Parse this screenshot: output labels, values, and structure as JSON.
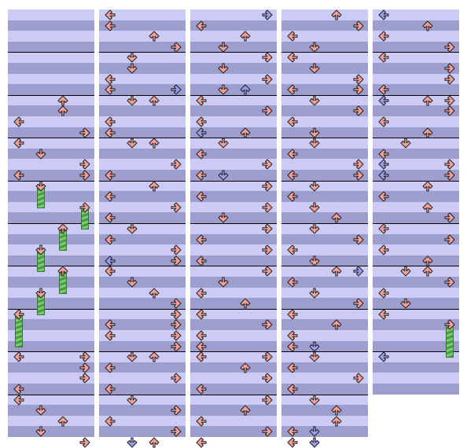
{
  "screen": {
    "type": "dance-step-chart",
    "lanes": [
      "left",
      "down",
      "up",
      "right"
    ],
    "colors": {
      "row_light": "#cbcbf5",
      "row_dark": "#9d9dce",
      "measure_line": "#000000",
      "note_red": "#f6a09a",
      "note_blue": "#9a9cf0",
      "note_outline": "#222222",
      "hold_body": "#60b060",
      "hold_head": "#e8a878"
    },
    "notes_per_measure": 8,
    "icons": {
      "left": "arrow-left-icon",
      "down": "arrow-down-icon",
      "up": "arrow-up-icon",
      "right": "arrow-right-icon"
    }
  },
  "columns": [
    {
      "measures": 10,
      "notes": [
        {
          "row": 8,
          "lane": "up",
          "color": "red"
        },
        {
          "row": 9,
          "lane": "up",
          "color": "red"
        },
        {
          "row": 10,
          "lane": "left",
          "color": "red"
        },
        {
          "row": 11,
          "lane": "right",
          "color": "red"
        },
        {
          "row": 12,
          "lane": "left",
          "color": "red"
        },
        {
          "row": 13,
          "lane": "down",
          "color": "red"
        },
        {
          "row": 14,
          "lane": "right",
          "color": "red"
        },
        {
          "row": 15,
          "lane": "right",
          "color": "red"
        },
        {
          "row": 15,
          "lane": "left",
          "color": "red"
        },
        {
          "row": 16,
          "lane": "down",
          "color": "red",
          "hold": 2
        },
        {
          "row": 18,
          "lane": "right",
          "color": "red",
          "hold": 2
        },
        {
          "row": 20,
          "lane": "up",
          "color": "red",
          "hold": 2
        },
        {
          "row": 22,
          "lane": "down",
          "color": "red",
          "hold": 2
        },
        {
          "row": 24,
          "lane": "up",
          "color": "red",
          "hold": 2
        },
        {
          "row": 26,
          "lane": "down",
          "color": "red",
          "hold": 2
        },
        {
          "row": 28,
          "lane": "left",
          "color": "red",
          "hold": 3
        },
        {
          "row": 32,
          "lane": "left",
          "color": "red"
        },
        {
          "row": 32,
          "lane": "right",
          "color": "red"
        },
        {
          "row": 33,
          "lane": "right",
          "color": "red"
        },
        {
          "row": 34,
          "lane": "right",
          "color": "red"
        },
        {
          "row": 35,
          "lane": "left",
          "color": "red"
        },
        {
          "row": 36,
          "lane": "left",
          "color": "red"
        },
        {
          "row": 37,
          "lane": "down",
          "color": "red"
        },
        {
          "row": 38,
          "lane": "up",
          "color": "red"
        },
        {
          "row": 39,
          "lane": "down",
          "color": "red"
        },
        {
          "row": 40,
          "lane": "right",
          "color": "red"
        }
      ]
    },
    {
      "measures": 10,
      "notes": [
        {
          "row": 0,
          "lane": "left",
          "color": "red"
        },
        {
          "row": 1,
          "lane": "left",
          "color": "red"
        },
        {
          "row": 2,
          "lane": "up",
          "color": "red"
        },
        {
          "row": 3,
          "lane": "right",
          "color": "red"
        },
        {
          "row": 4,
          "lane": "down",
          "color": "red"
        },
        {
          "row": 5,
          "lane": "down",
          "color": "red"
        },
        {
          "row": 6,
          "lane": "left",
          "color": "red"
        },
        {
          "row": 7,
          "lane": "right",
          "color": "blue"
        },
        {
          "row": 7,
          "lane": "left",
          "color": "red"
        },
        {
          "row": 8,
          "lane": "down",
          "color": "red"
        },
        {
          "row": 8,
          "lane": "up",
          "color": "red"
        },
        {
          "row": 10,
          "lane": "left",
          "color": "red"
        },
        {
          "row": 11,
          "lane": "left",
          "color": "red"
        },
        {
          "row": 12,
          "lane": "down",
          "color": "red"
        },
        {
          "row": 12,
          "lane": "up",
          "color": "red"
        },
        {
          "row": 14,
          "lane": "right",
          "color": "red"
        },
        {
          "row": 15,
          "lane": "left",
          "color": "red"
        },
        {
          "row": 16,
          "lane": "up",
          "color": "red"
        },
        {
          "row": 17,
          "lane": "left",
          "color": "red"
        },
        {
          "row": 18,
          "lane": "right",
          "color": "red"
        },
        {
          "row": 19,
          "lane": "left",
          "color": "red"
        },
        {
          "row": 20,
          "lane": "down",
          "color": "red"
        },
        {
          "row": 21,
          "lane": "left",
          "color": "red"
        },
        {
          "row": 22,
          "lane": "right",
          "color": "red"
        },
        {
          "row": 23,
          "lane": "left",
          "color": "blue"
        },
        {
          "row": 23,
          "lane": "right",
          "color": "red"
        },
        {
          "row": 24,
          "lane": "left",
          "color": "red"
        },
        {
          "row": 25,
          "lane": "down",
          "color": "red"
        },
        {
          "row": 26,
          "lane": "up",
          "color": "red"
        },
        {
          "row": 27,
          "lane": "right",
          "color": "red"
        },
        {
          "row": 28,
          "lane": "right",
          "color": "red"
        },
        {
          "row": 29,
          "lane": "left",
          "color": "red"
        },
        {
          "row": 29,
          "lane": "right",
          "color": "red"
        },
        {
          "row": 30,
          "lane": "left",
          "color": "red"
        },
        {
          "row": 30,
          "lane": "right",
          "color": "red"
        },
        {
          "row": 31,
          "lane": "right",
          "color": "red"
        },
        {
          "row": 32,
          "lane": "down",
          "color": "red"
        },
        {
          "row": 32,
          "lane": "up",
          "color": "red"
        },
        {
          "row": 33,
          "lane": "left",
          "color": "red"
        },
        {
          "row": 34,
          "lane": "right",
          "color": "red"
        },
        {
          "row": 35,
          "lane": "left",
          "color": "red"
        },
        {
          "row": 36,
          "lane": "down",
          "color": "red"
        },
        {
          "row": 37,
          "lane": "right",
          "color": "red"
        },
        {
          "row": 38,
          "lane": "left",
          "color": "red"
        },
        {
          "row": 39,
          "lane": "right",
          "color": "red"
        },
        {
          "row": 40,
          "lane": "up",
          "color": "red"
        },
        {
          "row": 40,
          "lane": "down",
          "color": "blue"
        }
      ]
    },
    {
      "measures": 10,
      "notes": [
        {
          "row": 0,
          "lane": "right",
          "color": "blue"
        },
        {
          "row": 1,
          "lane": "left",
          "color": "red"
        },
        {
          "row": 2,
          "lane": "up",
          "color": "red"
        },
        {
          "row": 3,
          "lane": "down",
          "color": "red"
        },
        {
          "row": 4,
          "lane": "right",
          "color": "red"
        },
        {
          "row": 5,
          "lane": "down",
          "color": "red"
        },
        {
          "row": 6,
          "lane": "right",
          "color": "red"
        },
        {
          "row": 7,
          "lane": "down",
          "color": "red"
        },
        {
          "row": 7,
          "lane": "up",
          "color": "blue"
        },
        {
          "row": 8,
          "lane": "left",
          "color": "red"
        },
        {
          "row": 9,
          "lane": "right",
          "color": "red"
        },
        {
          "row": 10,
          "lane": "left",
          "color": "red"
        },
        {
          "row": 11,
          "lane": "up",
          "color": "red"
        },
        {
          "row": 11,
          "lane": "left",
          "color": "blue"
        },
        {
          "row": 12,
          "lane": "down",
          "color": "red"
        },
        {
          "row": 13,
          "lane": "left",
          "color": "red"
        },
        {
          "row": 14,
          "lane": "right",
          "color": "red"
        },
        {
          "row": 15,
          "lane": "left",
          "color": "red"
        },
        {
          "row": 15,
          "lane": "down",
          "color": "blue"
        },
        {
          "row": 16,
          "lane": "right",
          "color": "red"
        },
        {
          "row": 17,
          "lane": "left",
          "color": "red"
        },
        {
          "row": 18,
          "lane": "right",
          "color": "red"
        },
        {
          "row": 19,
          "lane": "down",
          "color": "red"
        },
        {
          "row": 20,
          "lane": "right",
          "color": "red"
        },
        {
          "row": 21,
          "lane": "left",
          "color": "red"
        },
        {
          "row": 22,
          "lane": "right",
          "color": "red"
        },
        {
          "row": 23,
          "lane": "left",
          "color": "red"
        },
        {
          "row": 24,
          "lane": "right",
          "color": "red"
        },
        {
          "row": 25,
          "lane": "down",
          "color": "red"
        },
        {
          "row": 26,
          "lane": "left",
          "color": "red"
        },
        {
          "row": 27,
          "lane": "up",
          "color": "red"
        },
        {
          "row": 28,
          "lane": "left",
          "color": "red"
        },
        {
          "row": 29,
          "lane": "right",
          "color": "red"
        },
        {
          "row": 30,
          "lane": "left",
          "color": "red"
        },
        {
          "row": 31,
          "lane": "left",
          "color": "red"
        },
        {
          "row": 32,
          "lane": "left",
          "color": "red"
        },
        {
          "row": 32,
          "lane": "right",
          "color": "red"
        },
        {
          "row": 33,
          "lane": "up",
          "color": "red"
        },
        {
          "row": 34,
          "lane": "right",
          "color": "red"
        },
        {
          "row": 35,
          "lane": "left",
          "color": "red"
        },
        {
          "row": 36,
          "lane": "right",
          "color": "red"
        },
        {
          "row": 37,
          "lane": "up",
          "color": "red"
        },
        {
          "row": 38,
          "lane": "left",
          "color": "red"
        },
        {
          "row": 39,
          "lane": "right",
          "color": "red"
        },
        {
          "row": 40,
          "lane": "left",
          "color": "red"
        }
      ]
    },
    {
      "measures": 10,
      "notes": [
        {
          "row": 0,
          "lane": "up",
          "color": "red"
        },
        {
          "row": 1,
          "lane": "right",
          "color": "red"
        },
        {
          "row": 2,
          "lane": "left",
          "color": "red"
        },
        {
          "row": 3,
          "lane": "down",
          "color": "red"
        },
        {
          "row": 4,
          "lane": "left",
          "color": "red"
        },
        {
          "row": 5,
          "lane": "down",
          "color": "red"
        },
        {
          "row": 6,
          "lane": "right",
          "color": "red"
        },
        {
          "row": 7,
          "lane": "right",
          "color": "red"
        },
        {
          "row": 7,
          "lane": "left",
          "color": "red"
        },
        {
          "row": 8,
          "lane": "down",
          "color": "red"
        },
        {
          "row": 9,
          "lane": "right",
          "color": "red"
        },
        {
          "row": 10,
          "lane": "left",
          "color": "red"
        },
        {
          "row": 11,
          "lane": "down",
          "color": "red"
        },
        {
          "row": 12,
          "lane": "down",
          "color": "red"
        },
        {
          "row": 13,
          "lane": "left",
          "color": "red"
        },
        {
          "row": 14,
          "lane": "right",
          "color": "red"
        },
        {
          "row": 15,
          "lane": "right",
          "color": "red"
        },
        {
          "row": 15,
          "lane": "left",
          "color": "red"
        },
        {
          "row": 16,
          "lane": "down",
          "color": "red"
        },
        {
          "row": 17,
          "lane": "left",
          "color": "red"
        },
        {
          "row": 18,
          "lane": "down",
          "color": "red"
        },
        {
          "row": 19,
          "lane": "up",
          "color": "red"
        },
        {
          "row": 20,
          "lane": "down",
          "color": "red"
        },
        {
          "row": 21,
          "lane": "right",
          "color": "red"
        },
        {
          "row": 22,
          "lane": "left",
          "color": "red"
        },
        {
          "row": 23,
          "lane": "down",
          "color": "red"
        },
        {
          "row": 24,
          "lane": "right",
          "color": "blue"
        },
        {
          "row": 24,
          "lane": "up",
          "color": "red"
        },
        {
          "row": 25,
          "lane": "left",
          "color": "red"
        },
        {
          "row": 26,
          "lane": "down",
          "color": "red"
        },
        {
          "row": 27,
          "lane": "right",
          "color": "red"
        },
        {
          "row": 28,
          "lane": "left",
          "color": "red"
        },
        {
          "row": 29,
          "lane": "up",
          "color": "red"
        },
        {
          "row": 30,
          "lane": "left",
          "color": "red"
        },
        {
          "row": 31,
          "lane": "down",
          "color": "blue"
        },
        {
          "row": 31,
          "lane": "left",
          "color": "red"
        },
        {
          "row": 32,
          "lane": "down",
          "color": "red"
        },
        {
          "row": 33,
          "lane": "left",
          "color": "red"
        },
        {
          "row": 34,
          "lane": "right",
          "color": "red"
        },
        {
          "row": 35,
          "lane": "left",
          "color": "red"
        },
        {
          "row": 36,
          "lane": "down",
          "color": "red"
        },
        {
          "row": 37,
          "lane": "up",
          "color": "red"
        },
        {
          "row": 38,
          "lane": "up",
          "color": "red"
        },
        {
          "row": 39,
          "lane": "left",
          "color": "red"
        },
        {
          "row": 39,
          "lane": "down",
          "color": "blue"
        },
        {
          "row": 40,
          "lane": "left",
          "color": "red"
        },
        {
          "row": 40,
          "lane": "down",
          "color": "blue"
        }
      ]
    },
    {
      "measures": 9,
      "notes": [
        {
          "row": 0,
          "lane": "left",
          "color": "blue"
        },
        {
          "row": 1,
          "lane": "up",
          "color": "red"
        },
        {
          "row": 2,
          "lane": "left",
          "color": "red"
        },
        {
          "row": 3,
          "lane": "right",
          "color": "red"
        },
        {
          "row": 4,
          "lane": "left",
          "color": "red"
        },
        {
          "row": 5,
          "lane": "right",
          "color": "red"
        },
        {
          "row": 6,
          "lane": "right",
          "color": "red"
        },
        {
          "row": 7,
          "lane": "left",
          "color": "red"
        },
        {
          "row": 8,
          "lane": "right",
          "color": "red"
        },
        {
          "row": 8,
          "lane": "left",
          "color": "blue"
        },
        {
          "row": 8,
          "lane": "up",
          "color": "red"
        },
        {
          "row": 9,
          "lane": "right",
          "color": "red"
        },
        {
          "row": 10,
          "lane": "left",
          "color": "red"
        },
        {
          "row": 11,
          "lane": "up",
          "color": "red"
        },
        {
          "row": 12,
          "lane": "down",
          "color": "red"
        },
        {
          "row": 13,
          "lane": "left",
          "color": "red"
        },
        {
          "row": 14,
          "lane": "right",
          "color": "red"
        },
        {
          "row": 14,
          "lane": "left",
          "color": "blue"
        },
        {
          "row": 15,
          "lane": "right",
          "color": "red"
        },
        {
          "row": 15,
          "lane": "left",
          "color": "blue"
        },
        {
          "row": 16,
          "lane": "up",
          "color": "red"
        },
        {
          "row": 17,
          "lane": "left",
          "color": "red"
        },
        {
          "row": 18,
          "lane": "up",
          "color": "red"
        },
        {
          "row": 19,
          "lane": "right",
          "color": "red"
        },
        {
          "row": 20,
          "lane": "left",
          "color": "red"
        },
        {
          "row": 21,
          "lane": "right",
          "color": "red"
        },
        {
          "row": 22,
          "lane": "left",
          "color": "red"
        },
        {
          "row": 23,
          "lane": "up",
          "color": "red"
        },
        {
          "row": 24,
          "lane": "down",
          "color": "red"
        },
        {
          "row": 24,
          "lane": "up",
          "color": "red"
        },
        {
          "row": 25,
          "lane": "right",
          "color": "red"
        },
        {
          "row": 26,
          "lane": "left",
          "color": "red"
        },
        {
          "row": 27,
          "lane": "down",
          "color": "red"
        },
        {
          "row": 28,
          "lane": "left",
          "color": "red"
        },
        {
          "row": 29,
          "lane": "right",
          "color": "red",
          "hold": 3
        },
        {
          "row": 32,
          "lane": "left",
          "color": "blue"
        }
      ]
    }
  ]
}
